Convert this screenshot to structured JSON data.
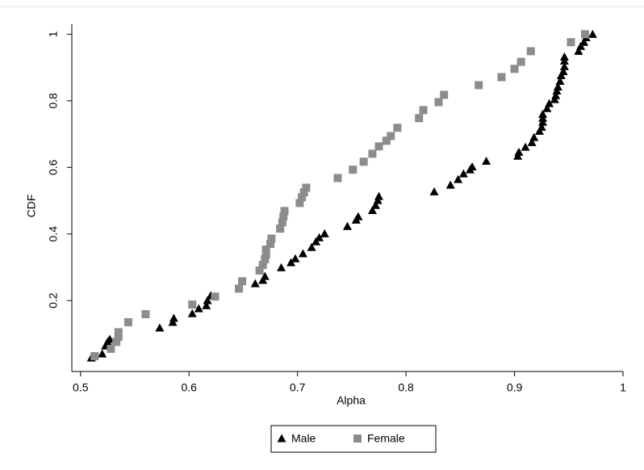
{
  "chart_data": {
    "type": "scatter",
    "x_label": "Alpha",
    "y_label": "CDF",
    "xlim": [
      0.492,
      1.0
    ],
    "ylim": [
      -0.013,
      1.03
    ],
    "xticks": [
      0.5,
      0.6,
      0.7,
      0.8,
      0.9,
      1
    ],
    "yticks": [
      0.2,
      0.4,
      0.6,
      0.8,
      1
    ],
    "legend": "bottom",
    "series": [
      {
        "name": "Male",
        "color": "#000000",
        "marker": "triangle",
        "x": [
          0.51,
          0.52,
          0.523,
          0.525,
          0.527,
          0.573,
          0.585,
          0.586,
          0.603,
          0.609,
          0.616,
          0.617,
          0.62,
          0.661,
          0.668,
          0.67,
          0.685,
          0.694,
          0.698,
          0.705,
          0.713,
          0.717,
          0.72,
          0.725,
          0.746,
          0.754,
          0.756,
          0.769,
          0.772,
          0.774,
          0.775,
          0.826,
          0.841,
          0.848,
          0.853,
          0.859,
          0.861,
          0.874,
          0.903,
          0.904,
          0.91,
          0.916,
          0.918,
          0.923,
          0.925,
          0.926,
          0.926,
          0.926,
          0.93,
          0.932,
          0.937,
          0.938,
          0.939,
          0.94,
          0.942,
          0.943,
          0.945,
          0.946,
          0.946,
          0.946,
          0.959,
          0.961,
          0.964,
          0.966,
          0.972
        ],
        "values": [
          0.028,
          0.04,
          0.064,
          0.076,
          0.084,
          0.118,
          0.135,
          0.147,
          0.161,
          0.176,
          0.185,
          0.2,
          0.215,
          0.251,
          0.261,
          0.273,
          0.299,
          0.314,
          0.326,
          0.341,
          0.36,
          0.377,
          0.389,
          0.401,
          0.423,
          0.442,
          0.452,
          0.471,
          0.486,
          0.501,
          0.513,
          0.527,
          0.547,
          0.564,
          0.581,
          0.593,
          0.602,
          0.619,
          0.634,
          0.646,
          0.661,
          0.675,
          0.69,
          0.709,
          0.721,
          0.736,
          0.748,
          0.76,
          0.777,
          0.792,
          0.804,
          0.816,
          0.83,
          0.842,
          0.859,
          0.876,
          0.888,
          0.903,
          0.92,
          0.932,
          0.949,
          0.964,
          0.976,
          0.99,
          1.0
        ]
      },
      {
        "name": "Female",
        "color": "#8c8c8c",
        "marker": "square",
        "x": [
          0.513,
          0.528,
          0.533,
          0.535,
          0.535,
          0.544,
          0.56,
          0.603,
          0.624,
          0.646,
          0.649,
          0.665,
          0.668,
          0.67,
          0.671,
          0.671,
          0.675,
          0.676,
          0.684,
          0.686,
          0.687,
          0.688,
          0.702,
          0.704,
          0.706,
          0.708,
          0.737,
          0.751,
          0.761,
          0.769,
          0.775,
          0.782,
          0.786,
          0.792,
          0.812,
          0.816,
          0.83,
          0.835,
          0.867,
          0.888,
          0.9,
          0.906,
          0.915,
          0.952,
          0.965
        ],
        "values": [
          0.033,
          0.055,
          0.076,
          0.091,
          0.105,
          0.135,
          0.159,
          0.188,
          0.212,
          0.236,
          0.258,
          0.29,
          0.307,
          0.324,
          0.338,
          0.353,
          0.37,
          0.386,
          0.416,
          0.435,
          0.452,
          0.469,
          0.493,
          0.51,
          0.525,
          0.539,
          0.568,
          0.593,
          0.617,
          0.641,
          0.663,
          0.68,
          0.694,
          0.719,
          0.748,
          0.772,
          0.796,
          0.818,
          0.847,
          0.871,
          0.896,
          0.917,
          0.949,
          0.976,
          1.0
        ]
      }
    ]
  }
}
